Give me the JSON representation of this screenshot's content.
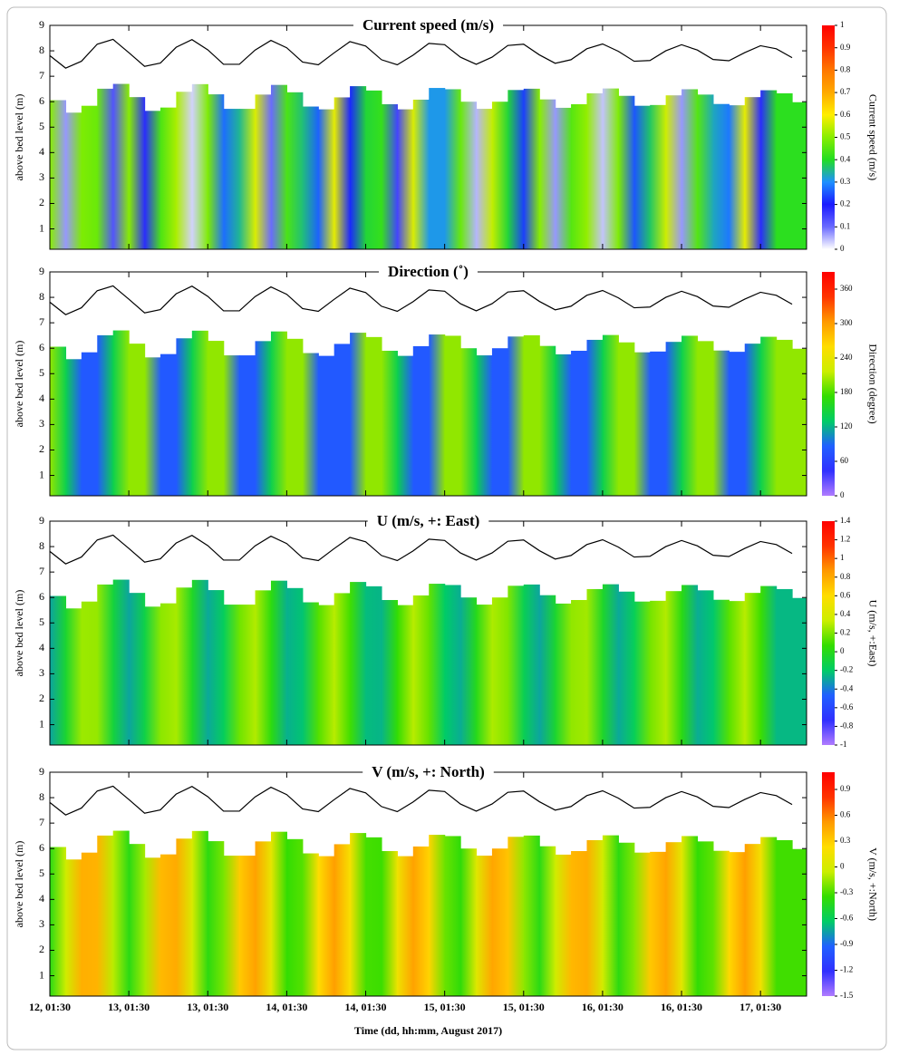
{
  "shared": {
    "xlabel": "Time (dd, hh:mm, August 2017)",
    "ylabel": "above bed level (m)",
    "xlim": [
      0,
      115
    ],
    "xticks": [
      {
        "value": 0,
        "label": "12, 01:30"
      },
      {
        "value": 12,
        "label": "13, 01:30"
      },
      {
        "value": 24,
        "label": "13, 01:30"
      },
      {
        "value": 36,
        "label": "14, 01:30"
      },
      {
        "value": 48,
        "label": "14, 01:30"
      },
      {
        "value": 60,
        "label": "15, 01:30"
      },
      {
        "value": 72,
        "label": "15, 01:30"
      },
      {
        "value": 84,
        "label": "16, 01:30"
      },
      {
        "value": 96,
        "label": "16, 01:30"
      },
      {
        "value": 108,
        "label": "17, 01:30"
      }
    ],
    "ylim": [
      0.2,
      9
    ],
    "yticks": [
      1,
      2,
      3,
      4,
      5,
      6,
      7,
      8,
      9
    ],
    "x": [
      0,
      2.4,
      4.8,
      7.2,
      9.6,
      12,
      14.4,
      16.8,
      19.2,
      21.6,
      24,
      26.4,
      28.8,
      31.2,
      33.6,
      36,
      38.4,
      40.8,
      43.2,
      45.6,
      48,
      50.4,
      52.8,
      55.2,
      57.6,
      60,
      62.4,
      64.8,
      67.2,
      69.6,
      72,
      74.4,
      76.8,
      79.2,
      81.6,
      84,
      86.4,
      88.8,
      91.2,
      93.6,
      96,
      98.4,
      100.8,
      103.2,
      105.6,
      108,
      110.4,
      112.8
    ],
    "water_level": [
      7.81,
      7.32,
      7.59,
      8.26,
      8.45,
      7.93,
      7.39,
      7.52,
      8.14,
      8.44,
      8.04,
      7.47,
      7.47,
      8.03,
      8.41,
      8.12,
      7.56,
      7.45,
      7.92,
      8.36,
      8.19,
      7.65,
      7.45,
      7.83,
      8.29,
      8.24,
      7.75,
      7.47,
      7.75,
      8.21,
      8.26,
      7.84,
      7.51,
      7.65,
      8.08,
      8.27,
      7.98,
      7.59,
      7.62,
      8.0,
      8.24,
      8.03,
      7.66,
      7.61,
      7.93,
      8.2,
      8.08,
      7.73
    ],
    "surface": [
      6.06,
      5.57,
      5.84,
      6.51,
      6.7,
      6.18,
      5.64,
      5.77,
      6.39,
      6.69,
      6.29,
      5.72,
      5.72,
      6.28,
      6.66,
      6.37,
      5.81,
      5.7,
      6.17,
      6.61,
      6.44,
      5.9,
      5.7,
      6.08,
      6.54,
      6.49,
      6.0,
      5.72,
      6.0,
      6.46,
      6.51,
      6.09,
      5.76,
      5.9,
      6.33,
      6.52,
      6.23,
      5.84,
      5.87,
      6.25,
      6.49,
      6.28,
      5.91,
      5.86,
      6.18,
      6.45,
      6.33,
      5.98
    ]
  },
  "chart_data": [
    {
      "type": "heatmap",
      "title": "Current speed (m/s)",
      "colorbar_label": "Current speed (m/s)",
      "clim": [
        0,
        1
      ],
      "cticks": [
        0,
        0.1,
        0.2,
        0.3,
        0.4,
        0.5,
        0.6,
        0.7,
        0.8,
        0.9,
        1
      ],
      "colors": [
        "#ffffff",
        "#6a6aff",
        "#1a1aff",
        "#1e90ff",
        "#22dd22",
        "#88ee00",
        "#ffee00",
        "#ffaa00",
        "#ff7700",
        "#ff3300",
        "#ff0000"
      ],
      "values": [
        0.5,
        0.07,
        0.49,
        0.47,
        0.13,
        0.5,
        0.18,
        0.44,
        0.53,
        0.03,
        0.49,
        0.27,
        0.35,
        0.57,
        0.1,
        0.44,
        0.36,
        0.26,
        0.58,
        0.21,
        0.39,
        0.42,
        0.15,
        0.57,
        0.31,
        0.31,
        0.47,
        0.05,
        0.55,
        0.39,
        0.23,
        0.5,
        0.07,
        0.45,
        0.51,
        0.04,
        0.49,
        0.25,
        0.37,
        0.56,
        0.07,
        0.45,
        0.33,
        0.28,
        0.58,
        0.18,
        0.41,
        0.41
      ]
    },
    {
      "type": "heatmap",
      "title": "Direction (˚)",
      "colorbar_label": "Direction (degree)",
      "clim": [
        0,
        390
      ],
      "cticks": [
        0,
        60,
        120,
        180,
        240,
        300,
        360
      ],
      "colors": [
        "#b07cff",
        "#3030ff",
        "#2060ff",
        "#00cc66",
        "#33dd00",
        "#ccee00",
        "#ffdd00",
        "#ff9900",
        "#ff3300",
        "#ff0000"
      ],
      "values": [
        200,
        140,
        80,
        80,
        140,
        200,
        200,
        80,
        80,
        140,
        200,
        200,
        80,
        80,
        140,
        200,
        200,
        80,
        80,
        80,
        200,
        200,
        140,
        80,
        80,
        200,
        200,
        140,
        80,
        80,
        200,
        200,
        140,
        80,
        80,
        140,
        200,
        200,
        80,
        80,
        140,
        200,
        200,
        80,
        80,
        140,
        200,
        200
      ]
    },
    {
      "type": "heatmap",
      "title": "U (m/s, +: East)",
      "colorbar_label": "U (m/s, +:East)",
      "clim": [
        -1,
        1.4
      ],
      "cticks": [
        -1,
        -0.8,
        -0.6,
        -0.4,
        -0.2,
        0,
        0.2,
        0.4,
        0.6,
        0.8,
        1,
        1.2,
        1.4
      ],
      "colors": [
        "#b07cff",
        "#3030ff",
        "#2060ff",
        "#00cc66",
        "#33dd00",
        "#ccee00",
        "#ffdd00",
        "#ff9900",
        "#ff3300",
        "#ff0000"
      ],
      "values": [
        -0.3,
        -0.06,
        0.25,
        0.24,
        -0.09,
        -0.3,
        -0.12,
        0.22,
        0.27,
        -0.03,
        -0.29,
        -0.17,
        0.17,
        0.29,
        0.03,
        -0.27,
        -0.22,
        0.12,
        0.3,
        0.09,
        -0.24,
        -0.26,
        0.06,
        0.3,
        0.15,
        -0.2,
        -0.28,
        0.0,
        0.28,
        0.2,
        -0.15,
        -0.3,
        -0.06,
        0.23,
        0.26,
        -0.04,
        -0.29,
        -0.16,
        0.18,
        0.29,
        0.02,
        -0.28,
        -0.21,
        0.13,
        0.3,
        0.08,
        -0.25,
        -0.25
      ]
    },
    {
      "type": "heatmap",
      "title": "V (m/s, +: North)",
      "colorbar_label": "V (m/s, +:North)",
      "clim": [
        -1.5,
        1.1
      ],
      "cticks": [
        -1.5,
        -1.2,
        -0.9,
        -0.6,
        -0.3,
        0,
        0.3,
        0.6,
        0.9
      ],
      "colors": [
        "#b07cff",
        "#3030ff",
        "#2060ff",
        "#00cc66",
        "#33dd00",
        "#ccee00",
        "#ffdd00",
        "#ff9900",
        "#ff3300",
        "#ff0000"
      ],
      "values": [
        -0.4,
        -0.04,
        0.43,
        0.41,
        -0.09,
        -0.4,
        -0.13,
        0.38,
        0.45,
        0.01,
        -0.39,
        -0.21,
        0.31,
        0.49,
        0.1,
        -0.35,
        -0.28,
        0.23,
        0.5,
        0.19,
        -0.31,
        -0.33,
        0.14,
        0.49,
        0.27,
        -0.24,
        -0.37,
        0.05,
        0.47,
        0.34,
        -0.17,
        -0.4,
        -0.04,
        0.39,
        0.44,
        -0.02,
        -0.39,
        -0.19,
        0.32,
        0.48,
        0.07,
        -0.36,
        -0.26,
        0.25,
        0.5,
        0.16,
        -0.32,
        -0.32
      ]
    }
  ]
}
